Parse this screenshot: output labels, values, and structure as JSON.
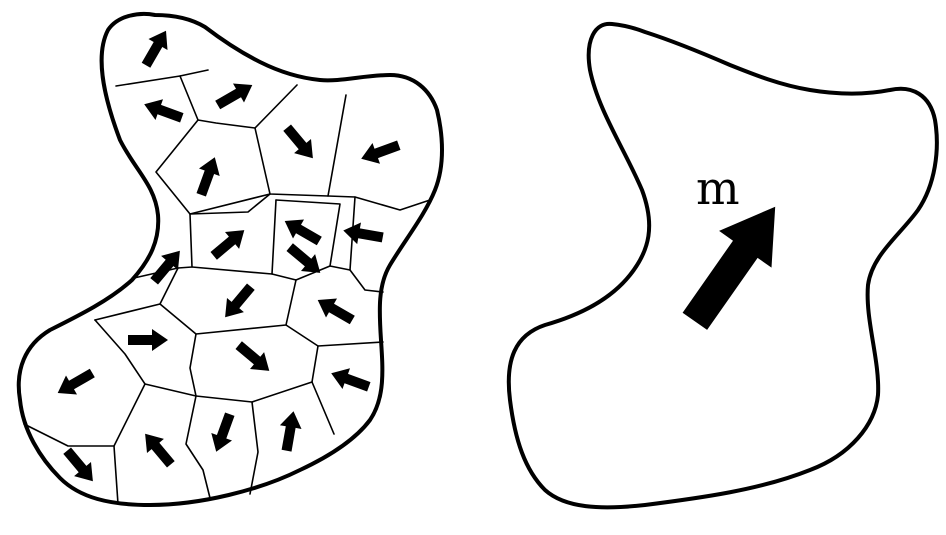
{
  "diagram": {
    "left_panel": {
      "domain_moment_directions_deg": [
        -60,
        200,
        -30,
        50,
        160,
        -70,
        -40,
        210,
        190,
        -50,
        130,
        210,
        0,
        40,
        200,
        150,
        230,
        110,
        -80,
        50,
        40
      ]
    },
    "right_panel": {
      "label": "m",
      "moment_direction_deg": -55
    },
    "colors": {
      "stroke": "#000000",
      "fill": "#ffffff"
    }
  }
}
